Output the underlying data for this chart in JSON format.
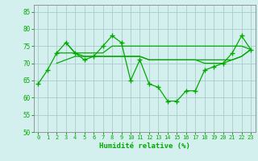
{
  "xlabel": "Humidité relative (%)",
  "xlim": [
    -0.5,
    23.5
  ],
  "ylim": [
    50,
    87
  ],
  "yticks": [
    50,
    55,
    60,
    65,
    70,
    75,
    80,
    85
  ],
  "xticks": [
    0,
    1,
    2,
    3,
    4,
    5,
    6,
    7,
    8,
    9,
    10,
    11,
    12,
    13,
    14,
    15,
    16,
    17,
    18,
    19,
    20,
    21,
    22,
    23
  ],
  "bg_color": "#d4f0ee",
  "grid_color": "#aacccc",
  "line_color": "#00aa00",
  "line1": [
    64,
    68,
    73,
    76,
    73,
    71,
    72,
    75,
    78,
    76,
    65,
    71,
    64,
    63,
    59,
    59,
    62,
    62,
    68,
    69,
    70,
    73,
    78,
    74
  ],
  "line2": [
    null,
    null,
    null,
    76,
    73,
    73,
    73,
    73,
    75,
    75,
    75,
    75,
    75,
    75,
    75,
    75,
    75,
    75,
    75,
    75,
    75,
    75,
    75,
    74
  ],
  "line3": [
    null,
    null,
    73,
    73,
    73,
    72,
    72,
    72,
    72,
    72,
    72,
    72,
    71,
    71,
    71,
    71,
    71,
    71,
    71,
    71,
    71,
    71,
    72,
    74
  ],
  "line4": [
    null,
    null,
    70,
    71,
    72,
    72,
    72,
    72,
    72,
    72,
    72,
    72,
    71,
    71,
    71,
    71,
    71,
    71,
    70,
    70,
    70,
    71,
    72,
    74
  ]
}
